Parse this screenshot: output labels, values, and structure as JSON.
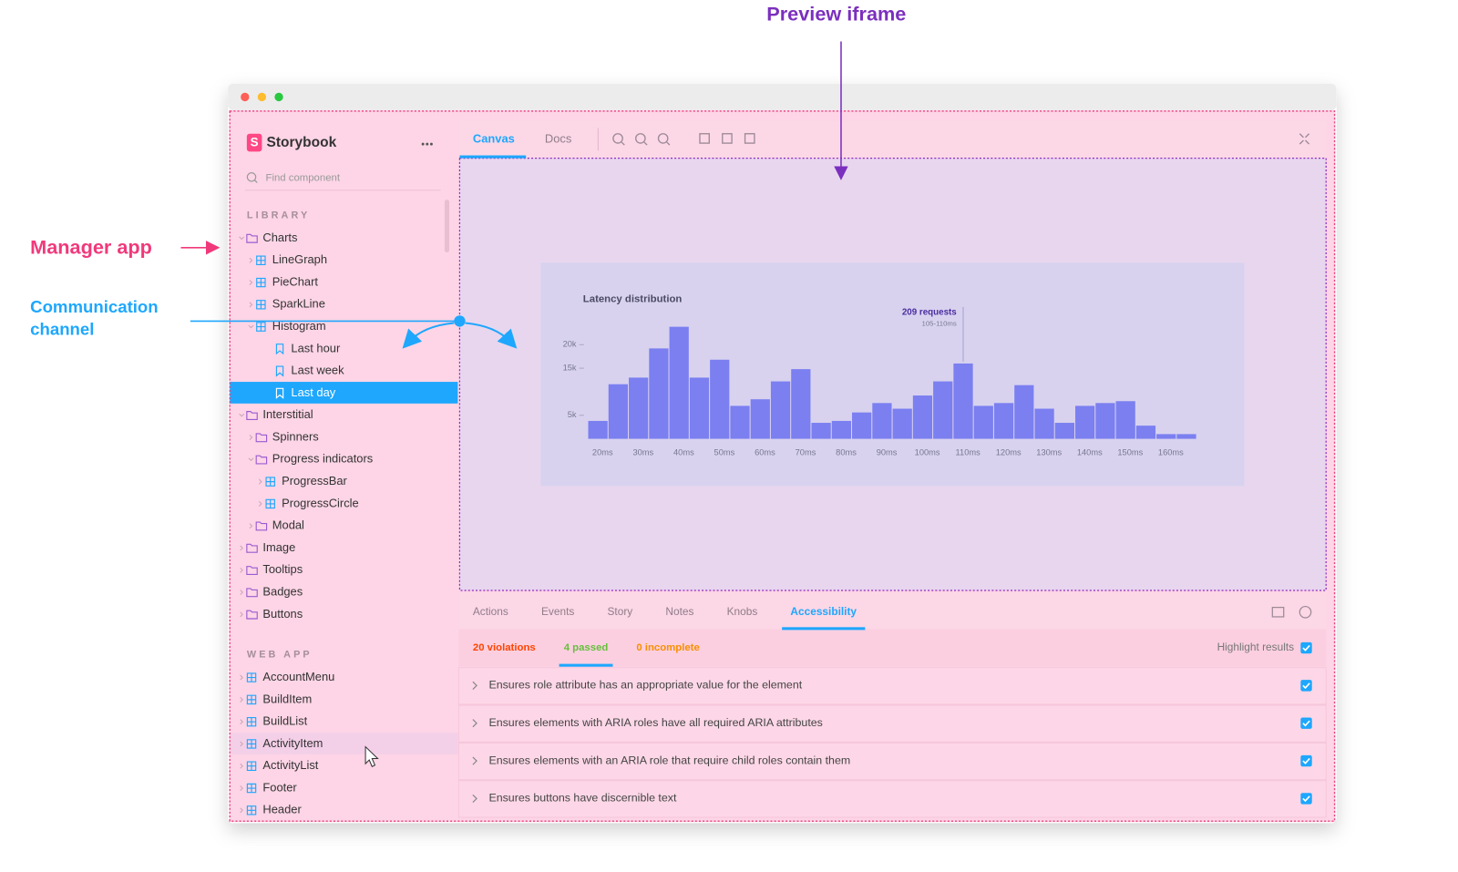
{
  "annotations": {
    "preview_iframe": "Preview iframe",
    "manager_app": "Manager app",
    "communication_channel": [
      "Communication",
      "channel"
    ]
  },
  "sidebar": {
    "brand": "Storybook",
    "search_placeholder": "Find component",
    "sections": [
      {
        "title": "LIBRARY",
        "items": [
          {
            "label": "Charts",
            "icon": "folder",
            "children": [
              {
                "label": "LineGraph",
                "icon": "component"
              },
              {
                "label": "PieChart",
                "icon": "component"
              },
              {
                "label": "SparkLine",
                "icon": "component"
              },
              {
                "label": "Histogram",
                "icon": "component",
                "children": [
                  {
                    "label": "Last hour",
                    "icon": "story"
                  },
                  {
                    "label": "Last week",
                    "icon": "story"
                  },
                  {
                    "label": "Last day",
                    "icon": "story",
                    "selected": true
                  }
                ]
              }
            ]
          },
          {
            "label": "Interstitial",
            "icon": "folder",
            "children": [
              {
                "label": "Spinners",
                "icon": "folder"
              },
              {
                "label": "Progress indicators",
                "icon": "folder",
                "children": [
                  {
                    "label": "ProgressBar",
                    "icon": "component"
                  },
                  {
                    "label": "ProgressCircle",
                    "icon": "component"
                  }
                ]
              },
              {
                "label": "Modal",
                "icon": "folder"
              }
            ]
          },
          {
            "label": "Image",
            "icon": "folder"
          },
          {
            "label": "Tooltips",
            "icon": "folder"
          },
          {
            "label": "Badges",
            "icon": "folder"
          },
          {
            "label": "Buttons",
            "icon": "folder"
          }
        ]
      },
      {
        "title": "WEB APP",
        "items": [
          {
            "label": "AccountMenu",
            "icon": "component"
          },
          {
            "label": "BuildItem",
            "icon": "component"
          },
          {
            "label": "BuildList",
            "icon": "component"
          },
          {
            "label": "ActivityItem",
            "icon": "component",
            "hovered": true
          },
          {
            "label": "ActivityList",
            "icon": "component"
          },
          {
            "label": "Footer",
            "icon": "component"
          },
          {
            "label": "Header",
            "icon": "component"
          }
        ]
      }
    ]
  },
  "toolbar": {
    "tabs": [
      {
        "label": "Canvas",
        "active": true
      },
      {
        "label": "Docs"
      }
    ]
  },
  "chart_data": {
    "type": "bar",
    "title": "Latency distribution",
    "categories": [
      "20ms",
      null,
      "30ms",
      null,
      "40ms",
      null,
      "50ms",
      null,
      "60ms",
      null,
      "70ms",
      null,
      "80ms",
      null,
      "90ms",
      null,
      "100ms",
      null,
      "110ms",
      null,
      "120ms",
      null,
      "130ms",
      null,
      "140ms",
      null,
      "150ms",
      null,
      "160ms",
      null
    ],
    "values": [
      3800,
      11600,
      13000,
      19200,
      23800,
      13000,
      16800,
      7000,
      8400,
      12200,
      14800,
      3400,
      3800,
      5600,
      7600,
      6400,
      9200,
      12200,
      16000,
      7000,
      7600,
      11400,
      6400,
      3400,
      7000,
      7600,
      8000,
      2800,
      1000,
      1000
    ],
    "color": "#7b7ff0",
    "ylim": [
      0,
      24000
    ],
    "yticks": [
      {
        "value": 5000,
        "label": "5k"
      },
      {
        "value": 15000,
        "label": "15k"
      },
      {
        "value": 20000,
        "label": "20k"
      }
    ],
    "annotation": {
      "title": "209 requests",
      "subtitle": "105-110ms",
      "bar": 18
    }
  },
  "addons": {
    "tabs": [
      {
        "label": "Actions"
      },
      {
        "label": "Events"
      },
      {
        "label": "Story"
      },
      {
        "label": "Notes"
      },
      {
        "label": "Knobs"
      },
      {
        "label": "Accessibility",
        "active": true
      }
    ],
    "summary": [
      {
        "label": "20 violations",
        "color": "#ff4400"
      },
      {
        "label": "4 passed",
        "color": "#66bf3c",
        "active": true
      },
      {
        "label": "0 incomplete",
        "color": "#fa8f00"
      }
    ],
    "highlight": {
      "label": "Highlight results",
      "checked": true
    },
    "rules": [
      {
        "text": "Ensures role attribute has an appropriate value for the element",
        "checked": true
      },
      {
        "text": "Ensures elements with ARIA roles have all required ARIA attributes",
        "checked": true
      },
      {
        "text": "Ensures elements with an ARIA role that require child roles contain them",
        "checked": true
      },
      {
        "text": "Ensures buttons have discernible text",
        "checked": true
      }
    ]
  }
}
